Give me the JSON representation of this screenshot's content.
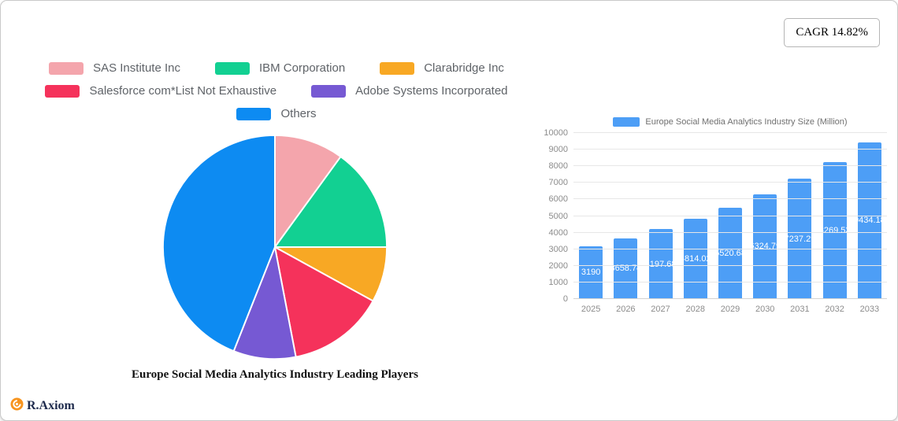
{
  "badge": {
    "text": "CAGR 14.82%"
  },
  "logo": {
    "text": "R.Axiom",
    "icon": "orange-circle-logo-icon",
    "icon_color": "#F7941E",
    "text_color": "#1F2B4D"
  },
  "chart_data": [
    {
      "type": "pie",
      "title": "Europe Social Media Analytics Industry Leading Players",
      "labels": [
        "SAS Institute Inc",
        "IBM Corporation",
        "Clarabridge Inc",
        "Salesforce com*List Not Exhaustive",
        "Adobe Systems Incorporated",
        "Others"
      ],
      "values": [
        10,
        15,
        8,
        14,
        9,
        44
      ],
      "colors": [
        "#F4A5AC",
        "#12D092",
        "#F8A824",
        "#F5325B",
        "#7659D3",
        "#0D8BF2"
      ],
      "start_angle_deg": -90,
      "direction": "clockwise",
      "slice_border_color": "#ffffff",
      "legend_position": "top"
    },
    {
      "type": "bar",
      "legend": "Europe Social Media Analytics Industry Size (Million)",
      "categories": [
        "2025",
        "2026",
        "2027",
        "2028",
        "2029",
        "2030",
        "2031",
        "2032",
        "2033"
      ],
      "values": [
        3190,
        3658.74,
        4197.68,
        4814.02,
        5520.68,
        6324.79,
        7237.29,
        8269.53,
        9434.18
      ],
      "value_labels": [
        "3190",
        "3658.74",
        "4197.68",
        "4814.02",
        "5520.68",
        "6324.79",
        "7237.29",
        "8269.53",
        "9434.18"
      ],
      "bar_color": "#4D9EF6",
      "value_label_color": "#ffffff",
      "ylim": [
        0,
        10000
      ],
      "ytick_step": 1000,
      "grid": true,
      "axis_label_color": "#8c8c8c"
    }
  ]
}
